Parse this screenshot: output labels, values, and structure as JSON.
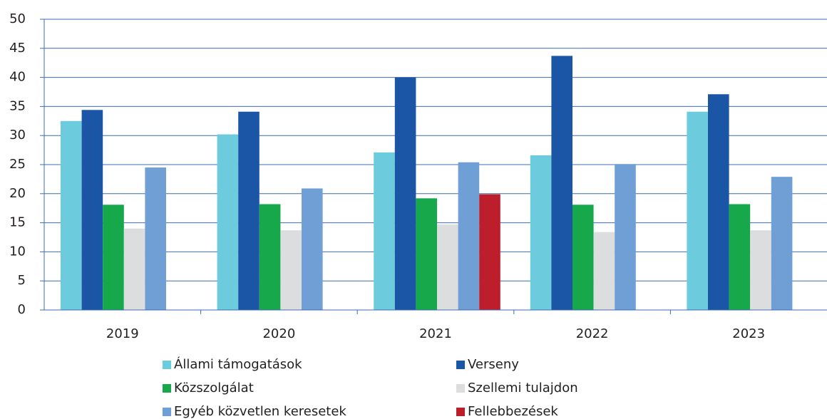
{
  "chart_data": {
    "type": "bar",
    "categories": [
      "2019",
      "2020",
      "2021",
      "2022",
      "2023"
    ],
    "series": [
      {
        "name": "Állami támogatások",
        "color": "#6ccbdc",
        "values": [
          32.5,
          30.2,
          27.1,
          26.6,
          34.1
        ]
      },
      {
        "name": "Verseny",
        "color": "#1b55a5",
        "values": [
          34.4,
          34.1,
          40.0,
          43.7,
          37.1
        ]
      },
      {
        "name": "Közszolgálat",
        "color": "#17a84b",
        "values": [
          18.1,
          18.2,
          19.2,
          18.1,
          18.2
        ]
      },
      {
        "name": "Szellemi tulajdon",
        "color": "#dcdddf",
        "values": [
          14.0,
          13.7,
          14.7,
          13.4,
          13.7
        ]
      },
      {
        "name": "Egyéb közvetlen keresetek",
        "color": "#6f9fd5",
        "values": [
          24.5,
          20.9,
          25.4,
          25.1,
          22.9
        ]
      },
      {
        "name": "Fellebbezések",
        "color": "#bd1e2c",
        "values": [
          null,
          null,
          19.9,
          null,
          null
        ]
      }
    ],
    "ylim": [
      0,
      50
    ],
    "yticks": [
      0,
      5,
      10,
      15,
      20,
      25,
      30,
      35,
      40,
      45,
      50
    ],
    "grid": true,
    "legend": "bottom"
  }
}
